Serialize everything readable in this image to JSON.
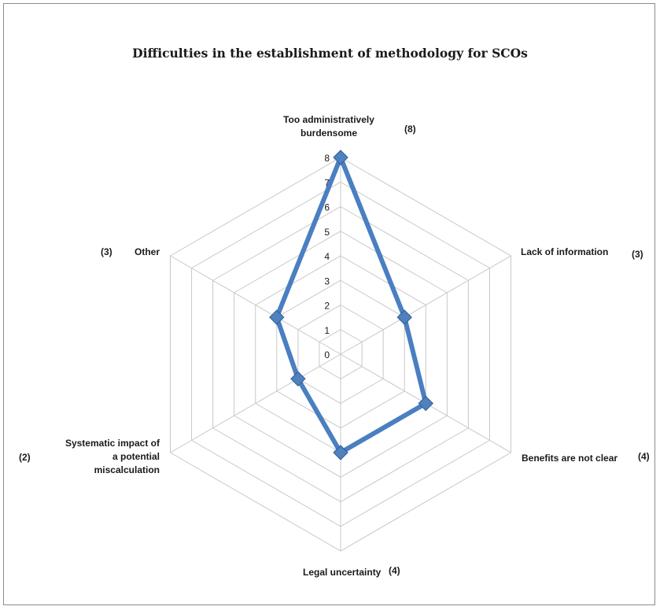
{
  "chart_data": {
    "type": "radar",
    "title": "Difficulties in the establishment of methodology for SCOs",
    "rmax": 8,
    "ticks": [
      "0",
      "1",
      "2",
      "3",
      "4",
      "5",
      "6",
      "7",
      "8"
    ],
    "grid": true,
    "series_color": "#4a7fc1",
    "marker_color": "#4f81bd",
    "grid_color": "#c8c8c8",
    "categories": [
      {
        "label": [
          "Too administratively",
          "burdensome"
        ],
        "count_label": "(8)"
      },
      {
        "label": [
          "Lack of information"
        ],
        "count_label": "(3)"
      },
      {
        "label": [
          "Benefits are not clear"
        ],
        "count_label": "(4)"
      },
      {
        "label": [
          "Legal uncertainty"
        ],
        "count_label": "(4)"
      },
      {
        "label": [
          "Systematic impact of",
          "a potential",
          "miscalculation"
        ],
        "count_label": "(2)"
      },
      {
        "label": [
          "Other"
        ],
        "count_label": "(3)"
      }
    ],
    "values": [
      8,
      3,
      4,
      4,
      2,
      3
    ]
  }
}
